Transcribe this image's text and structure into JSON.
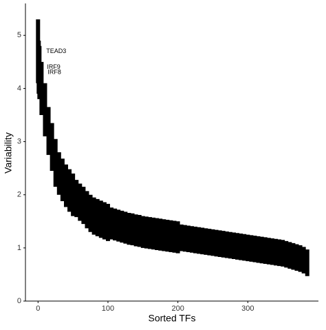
{
  "chart_data": {
    "type": "errorpoint",
    "x_label": "Sorted TFs",
    "y_label": "Variability",
    "x": [
      0,
      1,
      2,
      5,
      10,
      15,
      20,
      25,
      30,
      35,
      40,
      45,
      50,
      55,
      60,
      65,
      70,
      75,
      80,
      85,
      90,
      95,
      100,
      105,
      110,
      115,
      120,
      125,
      130,
      135,
      140,
      145,
      150,
      155,
      160,
      165,
      170,
      175,
      180,
      185,
      190,
      195,
      200,
      205,
      210,
      215,
      220,
      225,
      230,
      235,
      240,
      245,
      250,
      255,
      260,
      265,
      270,
      275,
      280,
      285,
      290,
      295,
      300,
      305,
      310,
      315,
      320,
      325,
      330,
      335,
      340,
      345,
      350,
      355,
      360,
      365,
      370,
      375,
      380,
      385
    ],
    "values": [
      4.7,
      4.4,
      4.3,
      4.0,
      3.6,
      3.2,
      2.9,
      2.6,
      2.4,
      2.28,
      2.17,
      2.08,
      2.0,
      1.93,
      1.86,
      1.8,
      1.72,
      1.65,
      1.6,
      1.57,
      1.54,
      1.51,
      1.48,
      1.46,
      1.44,
      1.42,
      1.4,
      1.38,
      1.36,
      1.35,
      1.33,
      1.32,
      1.3,
      1.29,
      1.28,
      1.27,
      1.26,
      1.25,
      1.24,
      1.23,
      1.22,
      1.21,
      1.2,
      1.19,
      1.18,
      1.17,
      1.16,
      1.15,
      1.14,
      1.13,
      1.12,
      1.11,
      1.1,
      1.09,
      1.08,
      1.07,
      1.06,
      1.05,
      1.04,
      1.03,
      1.02,
      1.01,
      1.0,
      0.99,
      0.98,
      0.97,
      0.96,
      0.95,
      0.94,
      0.93,
      0.92,
      0.91,
      0.9,
      0.88,
      0.86,
      0.84,
      0.82,
      0.8,
      0.77,
      0.72
    ],
    "errors": [
      0.6,
      0.5,
      0.5,
      0.5,
      0.5,
      0.45,
      0.45,
      0.45,
      0.4,
      0.4,
      0.4,
      0.4,
      0.4,
      0.35,
      0.35,
      0.35,
      0.35,
      0.35,
      0.35,
      0.35,
      0.35,
      0.35,
      0.35,
      0.3,
      0.3,
      0.3,
      0.3,
      0.3,
      0.3,
      0.3,
      0.3,
      0.3,
      0.3,
      0.3,
      0.3,
      0.3,
      0.3,
      0.3,
      0.3,
      0.3,
      0.3,
      0.3,
      0.3,
      0.25,
      0.25,
      0.25,
      0.25,
      0.25,
      0.25,
      0.25,
      0.25,
      0.25,
      0.25,
      0.25,
      0.25,
      0.25,
      0.25,
      0.25,
      0.25,
      0.25,
      0.25,
      0.25,
      0.25,
      0.25,
      0.25,
      0.25,
      0.25,
      0.25,
      0.25,
      0.25,
      0.25,
      0.25,
      0.25,
      0.25,
      0.25,
      0.25,
      0.25,
      0.25,
      0.25,
      0.25
    ],
    "color": "#000000",
    "annotations": [
      {
        "label": "TEAD3",
        "x": 0,
        "y": 4.7
      },
      {
        "label": "IRF9",
        "x": 1,
        "y": 4.4
      },
      {
        "label": "IRF8",
        "x": 2,
        "y": 4.3
      }
    ],
    "xlim": [
      -18,
      401
    ],
    "ylim": [
      0,
      5.6
    ],
    "xticks": [
      0,
      100,
      200,
      300
    ],
    "yticks": [
      0,
      1,
      2,
      3,
      4,
      5
    ]
  }
}
